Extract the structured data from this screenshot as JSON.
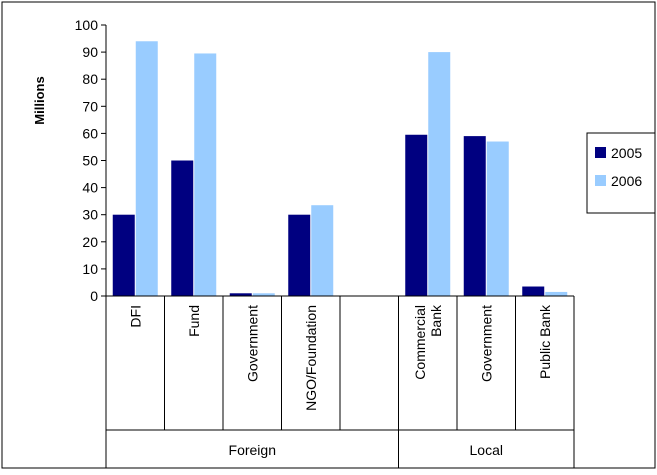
{
  "chart_data": {
    "type": "bar",
    "title": "",
    "xlabel": "",
    "ylabel": "Millions",
    "ylim": [
      0,
      100
    ],
    "yticks": [
      0,
      10,
      20,
      30,
      40,
      50,
      60,
      70,
      80,
      90,
      100
    ],
    "grid": false,
    "legend_position": "right",
    "groups": [
      {
        "label": "Foreign",
        "categories": [
          "DFI",
          "Fund",
          "Government",
          "NGO/Foundation",
          ""
        ]
      },
      {
        "label": "Local",
        "categories": [
          "Commercial Bank",
          "Government",
          "Public Bank"
        ]
      }
    ],
    "categories": [
      "DFI",
      "Fund",
      "Government",
      "NGO/Foundation",
      "",
      "Commercial Bank",
      "Government",
      "Public Bank"
    ],
    "series": [
      {
        "name": "2005",
        "color": "#000080",
        "values": [
          30,
          50,
          1,
          30,
          null,
          59.5,
          59,
          3.5
        ]
      },
      {
        "name": "2006",
        "color": "#99ccff",
        "values": [
          94,
          89.5,
          1,
          33.5,
          null,
          90,
          57,
          1.5
        ]
      }
    ]
  }
}
